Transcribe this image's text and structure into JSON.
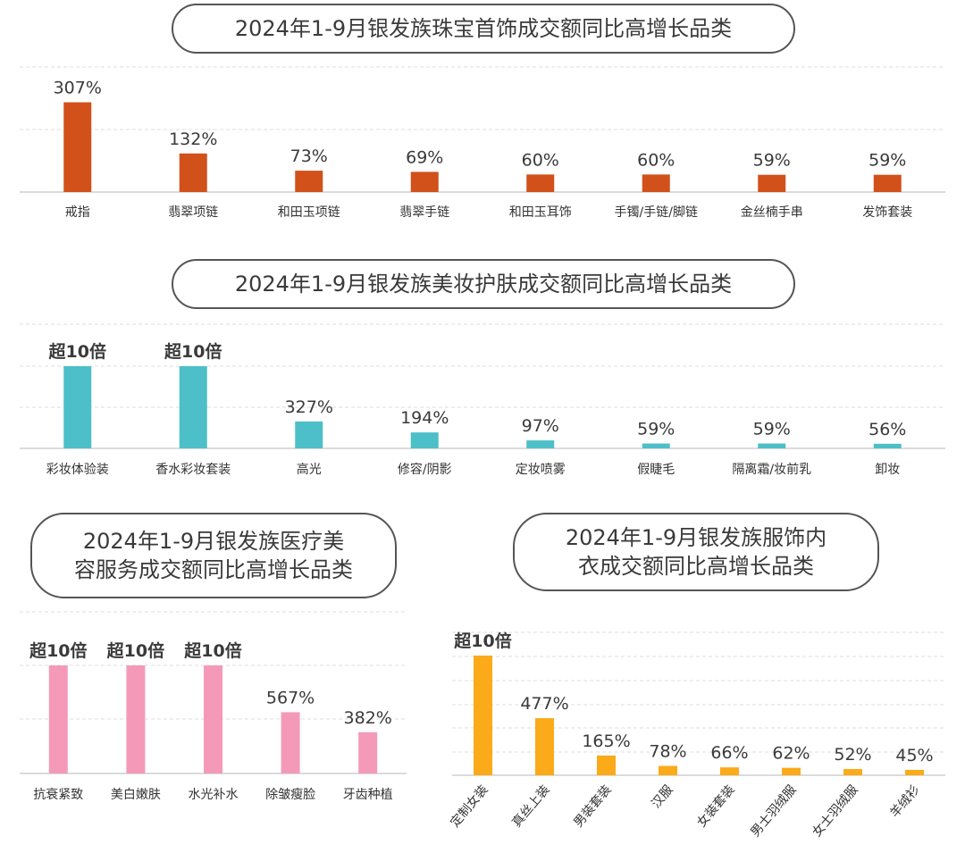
{
  "chart_data": [
    {
      "type": "bar",
      "title": "2024年1-9月银发族珠宝首饰成交额同比高增长品类",
      "categories": [
        "戒指",
        "翡翠项链",
        "和田玉项链",
        "翡翠手链",
        "和田玉耳饰",
        "手镯/手链/脚链",
        "金丝楠手串",
        "发饰套装"
      ],
      "values": [
        307,
        132,
        73,
        69,
        60,
        60,
        59,
        59
      ],
      "labels": [
        "307%",
        "132%",
        "73%",
        "69%",
        "60%",
        "60%",
        "59%",
        "59%"
      ],
      "color": "#d2501a",
      "ylim": [
        0,
        330
      ]
    },
    {
      "type": "bar",
      "title": "2024年1-9月银发族美妆护肤成交额同比高增长品类",
      "categories": [
        "彩妆体验装",
        "香水彩妆套装",
        "高光",
        "修容/阴影",
        "定妆喷雾",
        "假睫毛",
        "隔离霜/妆前乳",
        "卸妆"
      ],
      "values": [
        1000,
        1000,
        327,
        194,
        97,
        59,
        59,
        56
      ],
      "labels": [
        "超10倍",
        "超10倍",
        "327%",
        "194%",
        "97%",
        "59%",
        "59%",
        "56%"
      ],
      "color": "#4dbfc8",
      "ylim": [
        0,
        1000
      ]
    },
    {
      "type": "bar",
      "title": "2024年1-9月银发族医疗美\n容服务成交额同比高增长品类",
      "categories": [
        "抗衰紧致",
        "美白嫩肤",
        "水光补水",
        "除皱瘦脸",
        "牙齿种植"
      ],
      "values": [
        1000,
        1000,
        1000,
        567,
        382
      ],
      "labels": [
        "超10倍",
        "超10倍",
        "超10倍",
        "567%",
        "382%"
      ],
      "color": "#f49ab8",
      "ylim": [
        0,
        1000
      ]
    },
    {
      "type": "bar",
      "title": "2024年1-9月银发族服饰内\n衣成交额同比高增长品类",
      "categories": [
        "定制女装",
        "真丝上装",
        "男装套装",
        "汉服",
        "女装套装",
        "男士羽绒服",
        "女士羽绒服",
        "羊绒衫"
      ],
      "values": [
        1000,
        477,
        165,
        78,
        66,
        62,
        52,
        45
      ],
      "labels": [
        "超10倍",
        "477%",
        "165%",
        "78%",
        "66%",
        "62%",
        "52%",
        "45%"
      ],
      "color": "#fbaa1a",
      "ylim": [
        0,
        1000
      ]
    }
  ]
}
